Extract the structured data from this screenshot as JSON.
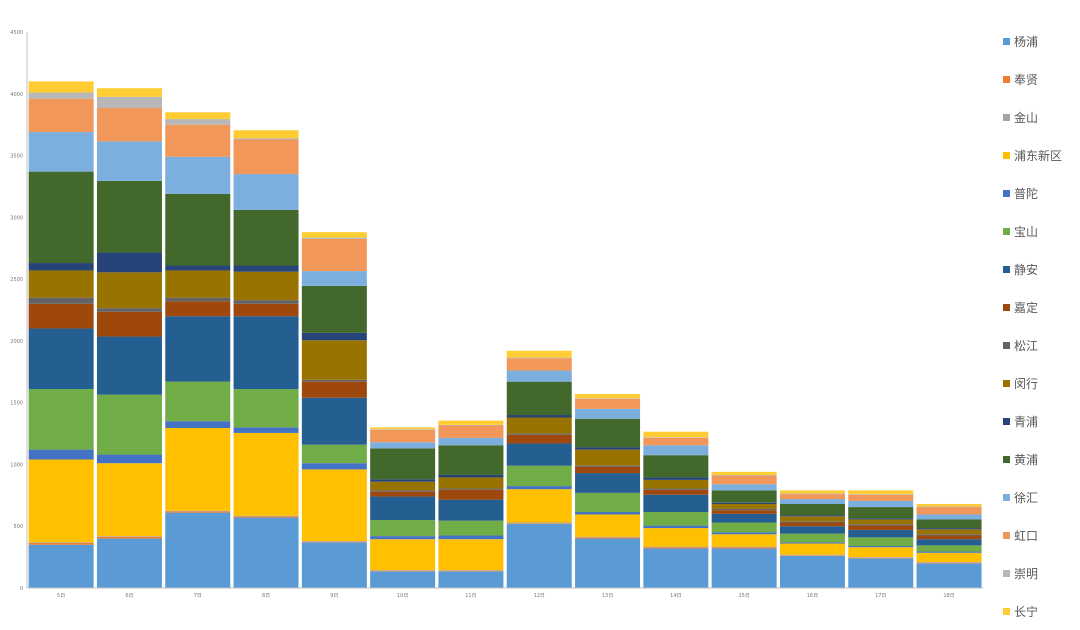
{
  "chart_data": {
    "type": "bar",
    "stacked": true,
    "categories": [
      "5日",
      "6日",
      "7日",
      "8日",
      "9日",
      "10日",
      "11日",
      "12日",
      "13日",
      "14日",
      "15日",
      "16日",
      "17日",
      "18日"
    ],
    "ylim": [
      0,
      4500
    ],
    "yticks": [
      0,
      500,
      1000,
      1500,
      2000,
      2500,
      3000,
      3500,
      4000,
      4500
    ],
    "legend_position": "right",
    "grid": false,
    "series": [
      {
        "name": "杨浦",
        "color": "#5B9BD5",
        "values": [
          350,
          400,
          610,
          570,
          370,
          135,
          135,
          520,
          400,
          320,
          320,
          260,
          240,
          200
        ]
      },
      {
        "name": "奉贤",
        "color": "#ED7D31",
        "values": [
          15,
          15,
          10,
          10,
          5,
          5,
          5,
          5,
          10,
          10,
          10,
          5,
          5,
          5
        ]
      },
      {
        "name": "金山",
        "color": "#A5A5A5",
        "values": [
          5,
          5,
          5,
          5,
          5,
          5,
          5,
          5,
          5,
          5,
          5,
          5,
          5,
          5
        ]
      },
      {
        "name": "浦东新区",
        "color": "#FFC000",
        "values": [
          670,
          590,
          670,
          670,
          580,
          250,
          250,
          270,
          180,
          150,
          100,
          90,
          80,
          75
        ]
      },
      {
        "name": "普陀",
        "color": "#4472C4",
        "values": [
          80,
          70,
          55,
          45,
          50,
          25,
          30,
          25,
          20,
          20,
          15,
          10,
          10,
          10
        ]
      },
      {
        "name": "宝山",
        "color": "#70AD47",
        "values": [
          490,
          485,
          320,
          310,
          150,
          130,
          120,
          165,
          155,
          110,
          80,
          70,
          70,
          50
        ]
      },
      {
        "name": "静安",
        "color": "#255E91",
        "values": [
          490,
          470,
          530,
          590,
          380,
          190,
          170,
          180,
          160,
          140,
          70,
          60,
          60,
          50
        ]
      },
      {
        "name": "嘉定",
        "color": "#9E480E",
        "values": [
          200,
          200,
          120,
          100,
          130,
          40,
          80,
          70,
          50,
          40,
          30,
          30,
          35,
          30
        ]
      },
      {
        "name": "松江",
        "color": "#636363",
        "values": [
          50,
          30,
          30,
          30,
          15,
          10,
          10,
          10,
          10,
          10,
          10,
          10,
          10,
          10
        ]
      },
      {
        "name": "闵行",
        "color": "#997300",
        "values": [
          220,
          290,
          220,
          230,
          320,
          70,
          90,
          130,
          130,
          70,
          40,
          40,
          40,
          40
        ]
      },
      {
        "name": "青浦",
        "color": "#264478",
        "values": [
          60,
          160,
          40,
          50,
          60,
          20,
          20,
          20,
          20,
          20,
          10,
          10,
          10,
          10
        ]
      },
      {
        "name": "黄浦",
        "color": "#43682B",
        "values": [
          740,
          580,
          580,
          450,
          380,
          250,
          240,
          270,
          230,
          180,
          100,
          90,
          90,
          70
        ]
      },
      {
        "name": "徐汇",
        "color": "#7CAFDD",
        "values": [
          320,
          320,
          300,
          290,
          120,
          50,
          60,
          90,
          80,
          80,
          50,
          40,
          50,
          40
        ]
      },
      {
        "name": "虹口",
        "color": "#F1975A",
        "values": [
          270,
          270,
          260,
          280,
          260,
          100,
          100,
          100,
          80,
          60,
          70,
          40,
          50,
          60
        ]
      },
      {
        "name": "崇明",
        "color": "#B7B7B7",
        "values": [
          50,
          90,
          45,
          10,
          10,
          5,
          5,
          5,
          5,
          5,
          5,
          5,
          5,
          5
        ]
      },
      {
        "name": "长宁",
        "color": "#FFCD33",
        "values": [
          90,
          70,
          55,
          65,
          45,
          15,
          35,
          55,
          35,
          45,
          25,
          25,
          30,
          20
        ]
      }
    ]
  }
}
